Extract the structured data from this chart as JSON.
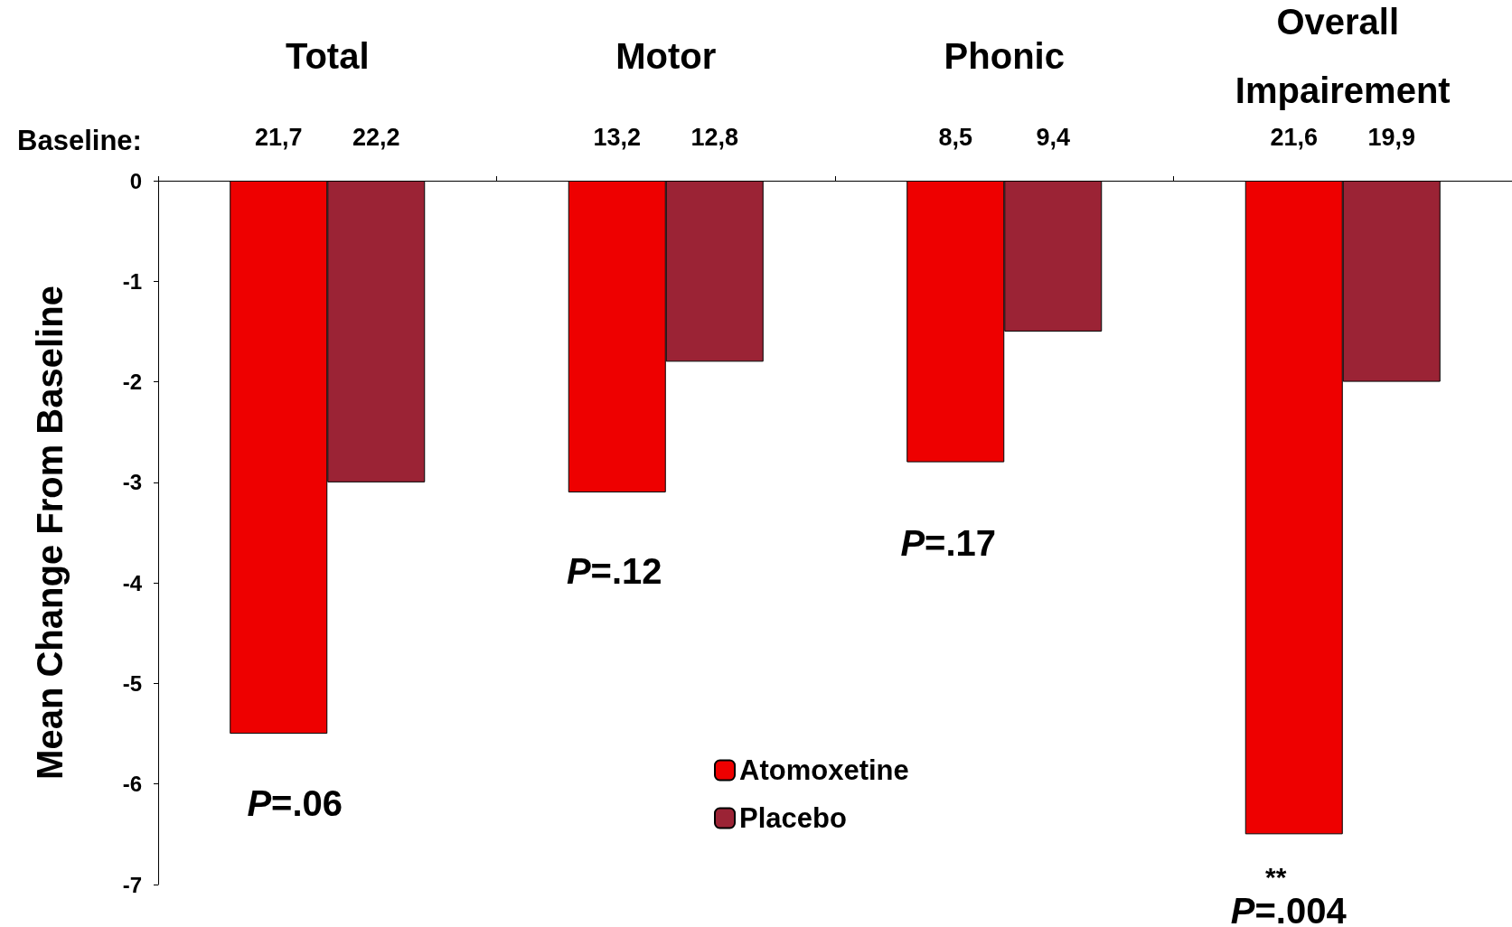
{
  "chart_data": {
    "type": "bar",
    "ylabel": "Mean Change From Baseline",
    "categories": [
      "Total",
      "Motor",
      "Phonic",
      "Overall Impairement"
    ],
    "series": [
      {
        "name": "Atomoxetine",
        "color": "#ee0000",
        "values": [
          -5.5,
          -3.1,
          -2.8,
          -6.5
        ]
      },
      {
        "name": "Placebo",
        "color": "#9b2335",
        "values": [
          -3.0,
          -1.8,
          -1.5,
          -2.0
        ]
      }
    ],
    "ylim": [
      -7,
      0
    ],
    "yticks": [
      -7,
      -6,
      -5,
      -4,
      -3,
      -2,
      -1,
      0
    ],
    "grid": false,
    "legend": "bottom",
    "annotations": [
      "Baseline:",
      "21,7",
      "22,2",
      "13,2",
      "12,8",
      "8,5",
      "9,4",
      "21,6",
      "19,9",
      "P=.06",
      "P=.12",
      "P=.17",
      "**",
      "P=.004"
    ]
  }
}
